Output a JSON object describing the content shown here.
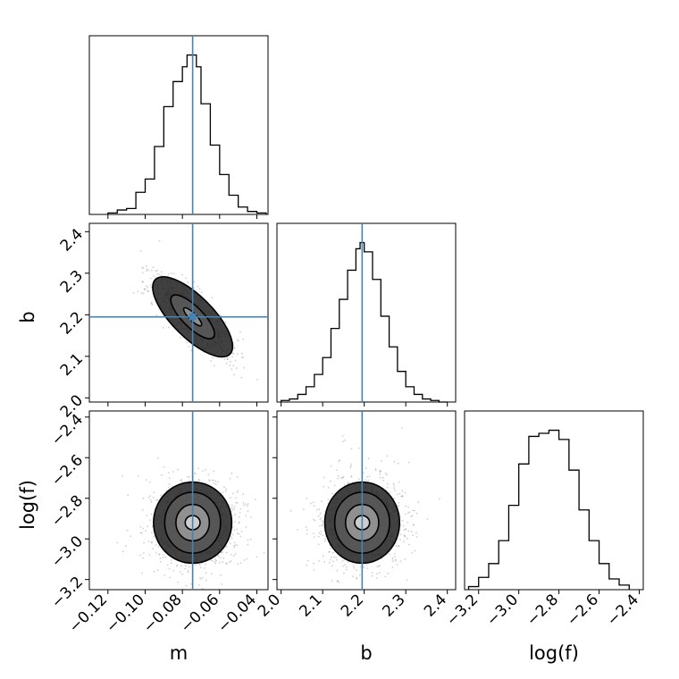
{
  "chart_data": {
    "type": "corner",
    "parameters": [
      "m",
      "b",
      "log(f)"
    ],
    "truths": {
      "m": -0.0745,
      "b": 2.195,
      "log(f)": -2.92
    },
    "panels": [
      {
        "type": "histogram",
        "parameter": "m",
        "xlim": [
          -0.13,
          -0.034
        ],
        "bin_edges": [
          -0.12,
          -0.115,
          -0.11,
          -0.105,
          -0.1,
          -0.095,
          -0.09,
          -0.085,
          -0.08,
          -0.0775,
          -0.075,
          -0.0725,
          -0.07,
          -0.065,
          -0.06,
          -0.055,
          -0.05,
          -0.045,
          -0.04,
          -0.035
        ],
        "counts": [
          1,
          3,
          4,
          15,
          24,
          46,
          73,
          90,
          100,
          108,
          108,
          100,
          75,
          47,
          27,
          13,
          5,
          2,
          1
        ],
        "truth": -0.0745
      },
      {
        "type": "histogram",
        "parameter": "b",
        "xlim": [
          1.99,
          2.42
        ],
        "bin_edges": [
          2.0,
          2.02,
          2.04,
          2.06,
          2.08,
          2.1,
          2.12,
          2.14,
          2.16,
          2.18,
          2.19,
          2.2,
          2.22,
          2.24,
          2.26,
          2.28,
          2.3,
          2.32,
          2.34,
          2.36,
          2.38,
          2.4
        ],
        "counts": [
          1,
          2,
          5,
          10,
          18,
          29,
          48,
          67,
          86,
          100,
          104,
          98,
          80,
          56,
          36,
          20,
          10,
          5,
          2,
          1,
          0
        ],
        "truth": 2.195
      },
      {
        "type": "histogram",
        "parameter": "log(f)",
        "xlim": [
          -3.27,
          -2.38
        ],
        "bin_edges": [
          -3.25,
          -3.2,
          -3.15,
          -3.1,
          -3.05,
          -3.0,
          -2.95,
          -2.9,
          -2.85,
          -2.8,
          -2.75,
          -2.7,
          -2.65,
          -2.6,
          -2.55,
          -2.5,
          -2.45
        ],
        "counts": [
          2,
          8,
          17,
          32,
          55,
          82,
          100,
          102,
          104,
          98,
          78,
          52,
          32,
          17,
          7,
          3
        ],
        "truth": null
      },
      {
        "type": "contour",
        "x": "m",
        "y": "b",
        "xlim": [
          -0.13,
          -0.034
        ],
        "ylim": [
          1.99,
          2.42
        ],
        "center": [
          -0.0745,
          2.195
        ],
        "contours": [
          {
            "level": 1,
            "rx": 0.006,
            "ry": 0.012
          },
          {
            "level": 2,
            "rx": 0.012,
            "ry": 0.045
          },
          {
            "level": 3,
            "rx": 0.02,
            "ry": 0.09
          }
        ],
        "slope": -4.5,
        "truth": [
          -0.0745,
          2.195
        ]
      },
      {
        "type": "contour",
        "x": "m",
        "y": "log(f)",
        "xlim": [
          -0.13,
          -0.034
        ],
        "ylim": [
          -3.25,
          -2.37
        ],
        "center": [
          -0.0745,
          -2.92
        ],
        "contours": [
          {
            "level": 1,
            "rx": 0.004,
            "ry": 0.035
          },
          {
            "level": 2,
            "rx": 0.009,
            "ry": 0.09
          },
          {
            "level": 3,
            "rx": 0.015,
            "ry": 0.15
          },
          {
            "level": 4,
            "rx": 0.021,
            "ry": 0.2
          }
        ],
        "truth_x": -0.0745
      },
      {
        "type": "contour",
        "x": "b",
        "y": "log(f)",
        "xlim": [
          1.99,
          2.42
        ],
        "ylim": [
          -3.25,
          -2.37
        ],
        "center": [
          2.195,
          -2.92
        ],
        "contours": [
          {
            "level": 1,
            "rx": 0.018,
            "ry": 0.035
          },
          {
            "level": 2,
            "rx": 0.04,
            "ry": 0.09
          },
          {
            "level": 3,
            "rx": 0.066,
            "ry": 0.15
          },
          {
            "level": 4,
            "rx": 0.09,
            "ry": 0.2
          }
        ],
        "truth_x": 2.195
      }
    ],
    "ticks": {
      "m": [
        "−0.12",
        "−0.10",
        "−0.08",
        "−0.06",
        "−0.04"
      ],
      "b": [
        "2.0",
        "2.1",
        "2.2",
        "2.3",
        "2.4"
      ],
      "log(f)": [
        "−3.2",
        "−3.0",
        "−2.8",
        "−2.6",
        "−2.4"
      ]
    },
    "tick_values": {
      "m": [
        -0.12,
        -0.1,
        -0.08,
        -0.06,
        -0.04
      ],
      "b": [
        2.0,
        2.1,
        2.2,
        2.3,
        2.4
      ],
      "log(f)": [
        -3.2,
        -3.0,
        -2.8,
        -2.6,
        -2.4
      ]
    },
    "xlabels": [
      "m",
      "b",
      "log(f)"
    ],
    "ylabels": [
      "b",
      "log(f)"
    ],
    "colors": {
      "truth": "#4682b4",
      "hist": "#000000",
      "points": "#999999"
    }
  }
}
